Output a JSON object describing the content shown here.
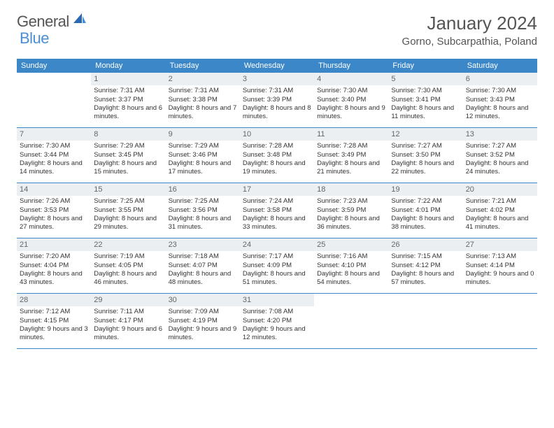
{
  "brand": {
    "word1": "General",
    "word2": "Blue"
  },
  "colors": {
    "header_bg": "#3b87c8",
    "header_text": "#ffffff",
    "daynum_bg": "#eceff1",
    "daynum_text": "#666666",
    "body_text": "#333333",
    "title_text": "#555555",
    "brand_blue": "#4a8fd4",
    "row_divider": "#3b87c8",
    "page_bg": "#ffffff"
  },
  "typography": {
    "title_fontsize": 26,
    "location_fontsize": 15,
    "dayheader_fontsize": 11,
    "daynum_fontsize": 11,
    "cell_fontsize": 9.5
  },
  "title": "January 2024",
  "location": "Gorno, Subcarpathia, Poland",
  "day_headers": [
    "Sunday",
    "Monday",
    "Tuesday",
    "Wednesday",
    "Thursday",
    "Friday",
    "Saturday"
  ],
  "weeks": [
    [
      {
        "n": "",
        "sr": "",
        "ss": "",
        "dl": ""
      },
      {
        "n": "1",
        "sr": "Sunrise: 7:31 AM",
        "ss": "Sunset: 3:37 PM",
        "dl": "Daylight: 8 hours and 6 minutes."
      },
      {
        "n": "2",
        "sr": "Sunrise: 7:31 AM",
        "ss": "Sunset: 3:38 PM",
        "dl": "Daylight: 8 hours and 7 minutes."
      },
      {
        "n": "3",
        "sr": "Sunrise: 7:31 AM",
        "ss": "Sunset: 3:39 PM",
        "dl": "Daylight: 8 hours and 8 minutes."
      },
      {
        "n": "4",
        "sr": "Sunrise: 7:30 AM",
        "ss": "Sunset: 3:40 PM",
        "dl": "Daylight: 8 hours and 9 minutes."
      },
      {
        "n": "5",
        "sr": "Sunrise: 7:30 AM",
        "ss": "Sunset: 3:41 PM",
        "dl": "Daylight: 8 hours and 11 minutes."
      },
      {
        "n": "6",
        "sr": "Sunrise: 7:30 AM",
        "ss": "Sunset: 3:43 PM",
        "dl": "Daylight: 8 hours and 12 minutes."
      }
    ],
    [
      {
        "n": "7",
        "sr": "Sunrise: 7:30 AM",
        "ss": "Sunset: 3:44 PM",
        "dl": "Daylight: 8 hours and 14 minutes."
      },
      {
        "n": "8",
        "sr": "Sunrise: 7:29 AM",
        "ss": "Sunset: 3:45 PM",
        "dl": "Daylight: 8 hours and 15 minutes."
      },
      {
        "n": "9",
        "sr": "Sunrise: 7:29 AM",
        "ss": "Sunset: 3:46 PM",
        "dl": "Daylight: 8 hours and 17 minutes."
      },
      {
        "n": "10",
        "sr": "Sunrise: 7:28 AM",
        "ss": "Sunset: 3:48 PM",
        "dl": "Daylight: 8 hours and 19 minutes."
      },
      {
        "n": "11",
        "sr": "Sunrise: 7:28 AM",
        "ss": "Sunset: 3:49 PM",
        "dl": "Daylight: 8 hours and 21 minutes."
      },
      {
        "n": "12",
        "sr": "Sunrise: 7:27 AM",
        "ss": "Sunset: 3:50 PM",
        "dl": "Daylight: 8 hours and 22 minutes."
      },
      {
        "n": "13",
        "sr": "Sunrise: 7:27 AM",
        "ss": "Sunset: 3:52 PM",
        "dl": "Daylight: 8 hours and 24 minutes."
      }
    ],
    [
      {
        "n": "14",
        "sr": "Sunrise: 7:26 AM",
        "ss": "Sunset: 3:53 PM",
        "dl": "Daylight: 8 hours and 27 minutes."
      },
      {
        "n": "15",
        "sr": "Sunrise: 7:25 AM",
        "ss": "Sunset: 3:55 PM",
        "dl": "Daylight: 8 hours and 29 minutes."
      },
      {
        "n": "16",
        "sr": "Sunrise: 7:25 AM",
        "ss": "Sunset: 3:56 PM",
        "dl": "Daylight: 8 hours and 31 minutes."
      },
      {
        "n": "17",
        "sr": "Sunrise: 7:24 AM",
        "ss": "Sunset: 3:58 PM",
        "dl": "Daylight: 8 hours and 33 minutes."
      },
      {
        "n": "18",
        "sr": "Sunrise: 7:23 AM",
        "ss": "Sunset: 3:59 PM",
        "dl": "Daylight: 8 hours and 36 minutes."
      },
      {
        "n": "19",
        "sr": "Sunrise: 7:22 AM",
        "ss": "Sunset: 4:01 PM",
        "dl": "Daylight: 8 hours and 38 minutes."
      },
      {
        "n": "20",
        "sr": "Sunrise: 7:21 AM",
        "ss": "Sunset: 4:02 PM",
        "dl": "Daylight: 8 hours and 41 minutes."
      }
    ],
    [
      {
        "n": "21",
        "sr": "Sunrise: 7:20 AM",
        "ss": "Sunset: 4:04 PM",
        "dl": "Daylight: 8 hours and 43 minutes."
      },
      {
        "n": "22",
        "sr": "Sunrise: 7:19 AM",
        "ss": "Sunset: 4:05 PM",
        "dl": "Daylight: 8 hours and 46 minutes."
      },
      {
        "n": "23",
        "sr": "Sunrise: 7:18 AM",
        "ss": "Sunset: 4:07 PM",
        "dl": "Daylight: 8 hours and 48 minutes."
      },
      {
        "n": "24",
        "sr": "Sunrise: 7:17 AM",
        "ss": "Sunset: 4:09 PM",
        "dl": "Daylight: 8 hours and 51 minutes."
      },
      {
        "n": "25",
        "sr": "Sunrise: 7:16 AM",
        "ss": "Sunset: 4:10 PM",
        "dl": "Daylight: 8 hours and 54 minutes."
      },
      {
        "n": "26",
        "sr": "Sunrise: 7:15 AM",
        "ss": "Sunset: 4:12 PM",
        "dl": "Daylight: 8 hours and 57 minutes."
      },
      {
        "n": "27",
        "sr": "Sunrise: 7:13 AM",
        "ss": "Sunset: 4:14 PM",
        "dl": "Daylight: 9 hours and 0 minutes."
      }
    ],
    [
      {
        "n": "28",
        "sr": "Sunrise: 7:12 AM",
        "ss": "Sunset: 4:15 PM",
        "dl": "Daylight: 9 hours and 3 minutes."
      },
      {
        "n": "29",
        "sr": "Sunrise: 7:11 AM",
        "ss": "Sunset: 4:17 PM",
        "dl": "Daylight: 9 hours and 6 minutes."
      },
      {
        "n": "30",
        "sr": "Sunrise: 7:09 AM",
        "ss": "Sunset: 4:19 PM",
        "dl": "Daylight: 9 hours and 9 minutes."
      },
      {
        "n": "31",
        "sr": "Sunrise: 7:08 AM",
        "ss": "Sunset: 4:20 PM",
        "dl": "Daylight: 9 hours and 12 minutes."
      },
      {
        "n": "",
        "sr": "",
        "ss": "",
        "dl": ""
      },
      {
        "n": "",
        "sr": "",
        "ss": "",
        "dl": ""
      },
      {
        "n": "",
        "sr": "",
        "ss": "",
        "dl": ""
      }
    ]
  ]
}
